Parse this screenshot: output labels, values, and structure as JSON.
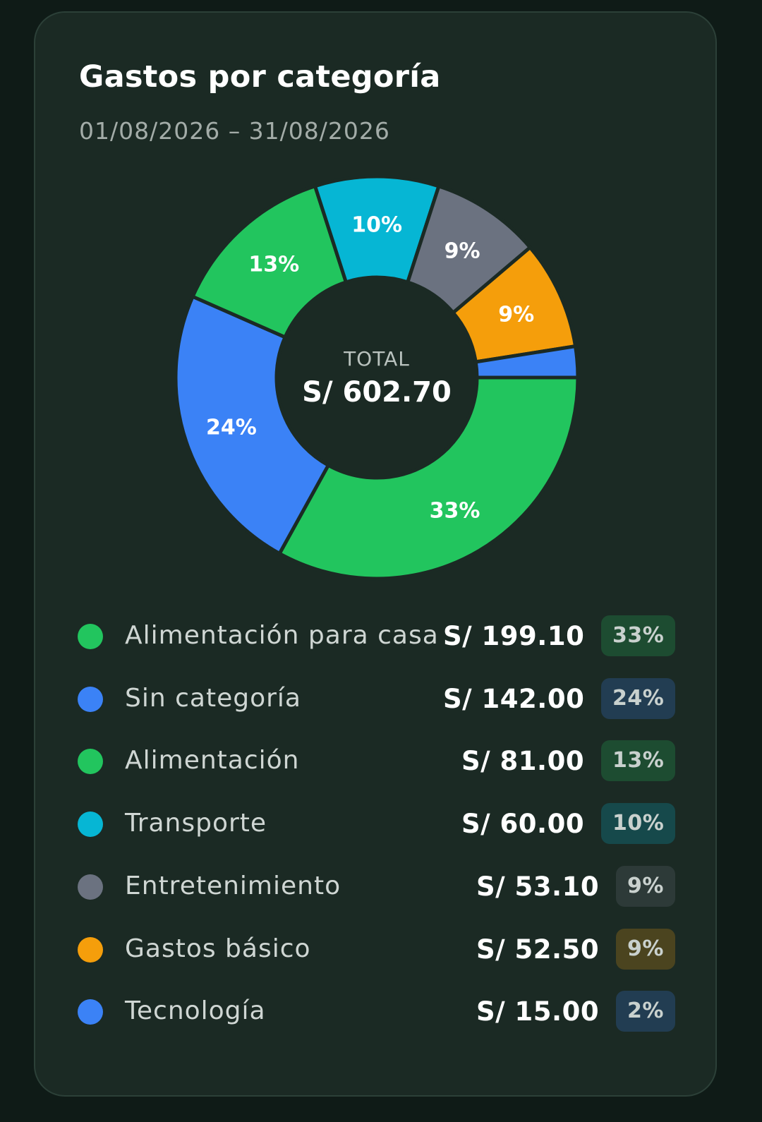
{
  "card": {
    "title": "Gastos por categoría",
    "date_range": "01/08/2026 – 31/08/2026"
  },
  "chart_data": {
    "type": "pie",
    "variant": "donut",
    "center_label": "TOTAL",
    "center_value": "S/ 602.70",
    "slices": [
      {
        "label": "Alimentación para casa",
        "value": 199.1,
        "amount": "S/ 199.10",
        "percent_label": "33%",
        "color": "#22c55e"
      },
      {
        "label": "Sin categoría",
        "value": 142.0,
        "amount": "S/ 142.00",
        "percent_label": "24%",
        "color": "#3b82f6"
      },
      {
        "label": "Alimentación",
        "value": 81.0,
        "amount": "S/ 81.00",
        "percent_label": "13%",
        "color": "#22c55e"
      },
      {
        "label": "Transporte",
        "value": 60.0,
        "amount": "S/ 60.00",
        "percent_label": "10%",
        "color": "#06b6d4"
      },
      {
        "label": "Entretenimiento",
        "value": 53.1,
        "amount": "S/ 53.10",
        "percent_label": "9%",
        "color": "#6b7280"
      },
      {
        "label": "Gastos básico",
        "value": 52.5,
        "amount": "S/ 52.50",
        "percent_label": "9%",
        "color": "#f59e0b"
      },
      {
        "label": "Tecnología",
        "value": 15.0,
        "amount": "S/ 15.00",
        "percent_label": "2%",
        "color": "#3b82f6"
      }
    ]
  },
  "colors": {
    "background": "#0f1b17",
    "card": "#1b2a24",
    "slice_gap": "#1b2a24"
  }
}
